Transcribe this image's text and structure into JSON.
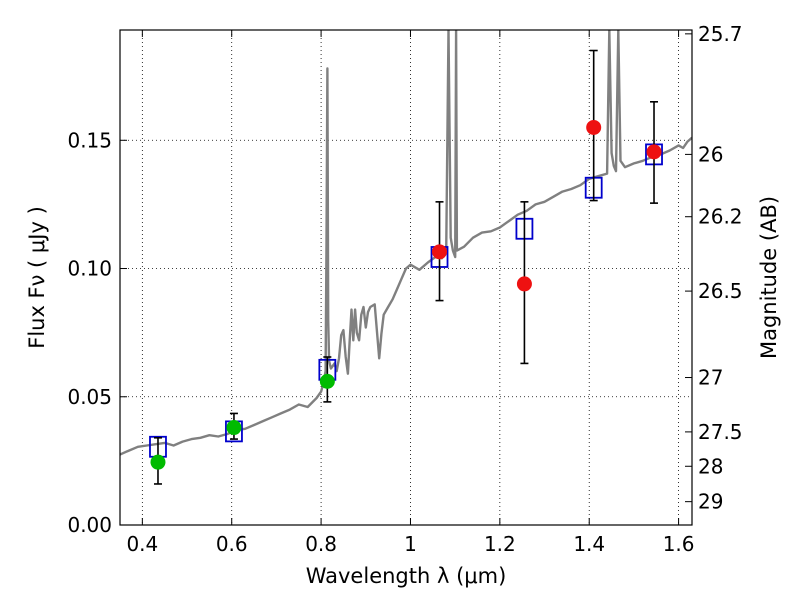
{
  "chart_data": {
    "type": "scatter",
    "title": "",
    "xlabel": "Wavelength  λ (μm)",
    "ylabel": "Flux  Fν  ( μJy )",
    "y2label": "Magnitude (AB)",
    "xlim": [
      0.35,
      1.63
    ],
    "ylim": [
      0.0,
      0.193
    ],
    "grid": true,
    "x_ticks": [
      "0.4",
      "0.6",
      "0.8",
      "1",
      "1.2",
      "1.4",
      "1.6"
    ],
    "x_tick_values": [
      0.4,
      0.6,
      0.8,
      1.0,
      1.2,
      1.4,
      1.6
    ],
    "y_ticks": [
      "0.00",
      "0.05",
      "0.10",
      "0.15"
    ],
    "y_tick_values": [
      0.0,
      0.05,
      0.1,
      0.15
    ],
    "y2_ticks": [
      {
        "label": "25.7",
        "flux": 0.1915
      },
      {
        "label": "26",
        "flux": 0.1445
      },
      {
        "label": "26.2",
        "flux": 0.1202
      },
      {
        "label": "26.5",
        "flux": 0.0912
      },
      {
        "label": "27",
        "flux": 0.0575
      },
      {
        "label": "27.5",
        "flux": 0.0363
      },
      {
        "label": "28",
        "flux": 0.0229
      },
      {
        "label": "29",
        "flux": 0.0091
      }
    ],
    "series": [
      {
        "kind": "spectrum",
        "color": "#808080",
        "points": [
          [
            0.35,
            0.0275
          ],
          [
            0.37,
            0.029
          ],
          [
            0.39,
            0.0305
          ],
          [
            0.41,
            0.031
          ],
          [
            0.43,
            0.0315
          ],
          [
            0.45,
            0.032
          ],
          [
            0.47,
            0.031
          ],
          [
            0.49,
            0.0325
          ],
          [
            0.51,
            0.0335
          ],
          [
            0.53,
            0.034
          ],
          [
            0.55,
            0.035
          ],
          [
            0.57,
            0.0345
          ],
          [
            0.59,
            0.0355
          ],
          [
            0.61,
            0.037
          ],
          [
            0.63,
            0.0375
          ],
          [
            0.65,
            0.039
          ],
          [
            0.67,
            0.0405
          ],
          [
            0.69,
            0.042
          ],
          [
            0.71,
            0.0435
          ],
          [
            0.73,
            0.045
          ],
          [
            0.75,
            0.047
          ],
          [
            0.77,
            0.046
          ],
          [
            0.79,
            0.0495
          ],
          [
            0.8,
            0.052
          ],
          [
            0.805,
            0.055
          ],
          [
            0.81,
            0.06
          ],
          [
            0.812,
            0.11
          ],
          [
            0.814,
            0.178
          ],
          [
            0.816,
            0.08
          ],
          [
            0.818,
            0.064
          ],
          [
            0.822,
            0.061
          ],
          [
            0.826,
            0.062
          ],
          [
            0.83,
            0.063
          ],
          [
            0.835,
            0.06
          ],
          [
            0.84,
            0.065
          ],
          [
            0.845,
            0.074
          ],
          [
            0.85,
            0.076
          ],
          [
            0.855,
            0.0655
          ],
          [
            0.86,
            0.059
          ],
          [
            0.864,
            0.072
          ],
          [
            0.868,
            0.084
          ],
          [
            0.872,
            0.072
          ],
          [
            0.876,
            0.084
          ],
          [
            0.88,
            0.075
          ],
          [
            0.885,
            0.072
          ],
          [
            0.89,
            0.082
          ],
          [
            0.895,
            0.085
          ],
          [
            0.9,
            0.077
          ],
          [
            0.905,
            0.083
          ],
          [
            0.91,
            0.085
          ],
          [
            0.92,
            0.086
          ],
          [
            0.93,
            0.065
          ],
          [
            0.935,
            0.0745
          ],
          [
            0.94,
            0.082
          ],
          [
            0.95,
            0.085
          ],
          [
            0.96,
            0.088
          ],
          [
            0.97,
            0.092
          ],
          [
            0.98,
            0.096
          ],
          [
            0.99,
            0.1
          ],
          [
            1.0,
            0.1015
          ],
          [
            1.02,
            0.0995
          ],
          [
            1.04,
            0.1025
          ],
          [
            1.06,
            0.105
          ],
          [
            1.07,
            0.104
          ],
          [
            1.08,
            0.1065
          ],
          [
            1.085,
            0.193
          ],
          [
            1.09,
            0.112
          ],
          [
            1.095,
            0.107
          ],
          [
            1.1,
            0.1045
          ],
          [
            1.102,
            0.193
          ],
          [
            1.104,
            0.107
          ],
          [
            1.12,
            0.1085
          ],
          [
            1.14,
            0.112
          ],
          [
            1.16,
            0.114
          ],
          [
            1.18,
            0.1145
          ],
          [
            1.2,
            0.116
          ],
          [
            1.22,
            0.1185
          ],
          [
            1.24,
            0.121
          ],
          [
            1.26,
            0.1225
          ],
          [
            1.28,
            0.125
          ],
          [
            1.3,
            0.126
          ],
          [
            1.32,
            0.128
          ],
          [
            1.34,
            0.13
          ],
          [
            1.36,
            0.131
          ],
          [
            1.38,
            0.1325
          ],
          [
            1.4,
            0.135
          ],
          [
            1.42,
            0.136
          ],
          [
            1.44,
            0.137
          ],
          [
            1.445,
            0.193
          ],
          [
            1.45,
            0.145
          ],
          [
            1.455,
            0.14
          ],
          [
            1.46,
            0.138
          ],
          [
            1.465,
            0.193
          ],
          [
            1.47,
            0.142
          ],
          [
            1.48,
            0.1395
          ],
          [
            1.5,
            0.141
          ],
          [
            1.52,
            0.142
          ],
          [
            1.54,
            0.1435
          ],
          [
            1.56,
            0.1445
          ],
          [
            1.58,
            0.146
          ],
          [
            1.6,
            0.148
          ],
          [
            1.61,
            0.147
          ],
          [
            1.62,
            0.1495
          ],
          [
            1.63,
            0.151
          ]
        ]
      },
      {
        "kind": "model-boxes",
        "color": "#0000cc",
        "points": [
          [
            0.435,
            0.0305
          ],
          [
            0.605,
            0.0365
          ],
          [
            0.814,
            0.0605
          ],
          [
            1.065,
            0.1045
          ],
          [
            1.255,
            0.1155
          ],
          [
            1.41,
            0.1315
          ],
          [
            1.545,
            0.1445
          ]
        ]
      },
      {
        "kind": "observed-green",
        "color": "#00bb00",
        "points": [
          {
            "x": 0.435,
            "y": 0.0245,
            "err_lo": 0.016,
            "err_hi": 0.034
          },
          {
            "x": 0.605,
            "y": 0.038,
            "err_lo": 0.0335,
            "err_hi": 0.0435
          },
          {
            "x": 0.814,
            "y": 0.056,
            "err_lo": 0.048,
            "err_hi": 0.0655
          }
        ]
      },
      {
        "kind": "observed-red",
        "color": "#ee1111",
        "points": [
          {
            "x": 1.065,
            "y": 0.1065,
            "err_lo": 0.0875,
            "err_hi": 0.126
          },
          {
            "x": 1.255,
            "y": 0.094,
            "err_lo": 0.063,
            "err_hi": 0.126
          },
          {
            "x": 1.41,
            "y": 0.155,
            "err_lo": 0.1265,
            "err_hi": 0.185
          },
          {
            "x": 1.545,
            "y": 0.1455,
            "err_lo": 0.1255,
            "err_hi": 0.165
          }
        ]
      }
    ]
  }
}
